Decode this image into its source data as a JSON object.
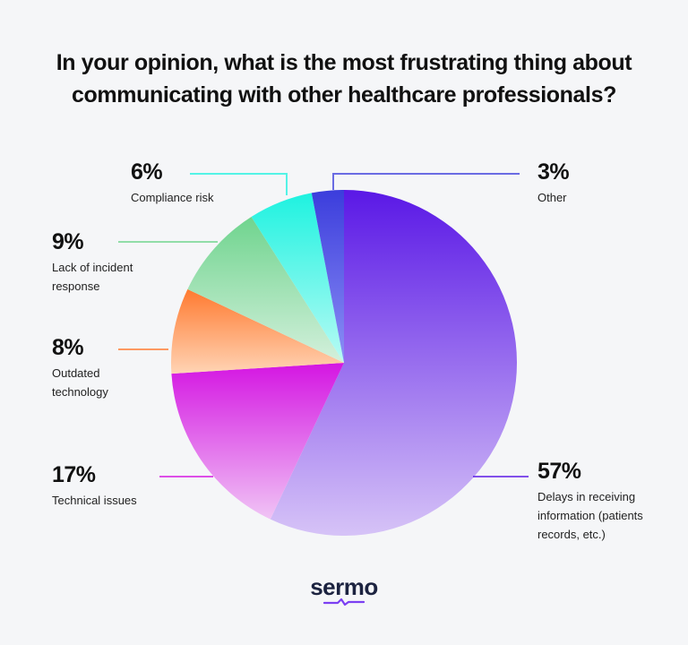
{
  "header": {
    "title_line1": "In your opinion, what is the most frustrating thing about",
    "title_line2": "communicating with other healthcare professionals?"
  },
  "chart_data": {
    "type": "pie",
    "slices": [
      {
        "label_lines": [
          "Delays in receiving",
          "information (patients",
          "records, etc.)"
        ],
        "value": 57,
        "pct_text": "57%",
        "color_start": "#5a18e6",
        "color_end": "#d6c3f7"
      },
      {
        "label_lines": [
          "Technical issues"
        ],
        "value": 17,
        "pct_text": "17%",
        "color_start": "#d415e2",
        "color_end": "#f0c4f5"
      },
      {
        "label_lines": [
          "Outdated",
          "technology"
        ],
        "value": 8,
        "pct_text": "8%",
        "color_start": "#ff7a30",
        "color_end": "#ffd4b5"
      },
      {
        "label_lines": [
          "Lack of incident",
          "response"
        ],
        "value": 9,
        "pct_text": "9%",
        "color_start": "#6fd48e",
        "color_end": "#d4f0dc"
      },
      {
        "label_lines": [
          "Compliance risk"
        ],
        "value": 6,
        "pct_text": "6%",
        "color_start": "#1ef2e0",
        "color_end": "#b8fbf4"
      },
      {
        "label_lines": [
          "Other"
        ],
        "value": 3,
        "pct_text": "3%",
        "color_start": "#3b3ddc",
        "color_end": "#8c8ff5"
      }
    ]
  },
  "footer": {
    "logo_text": "sermo"
  }
}
